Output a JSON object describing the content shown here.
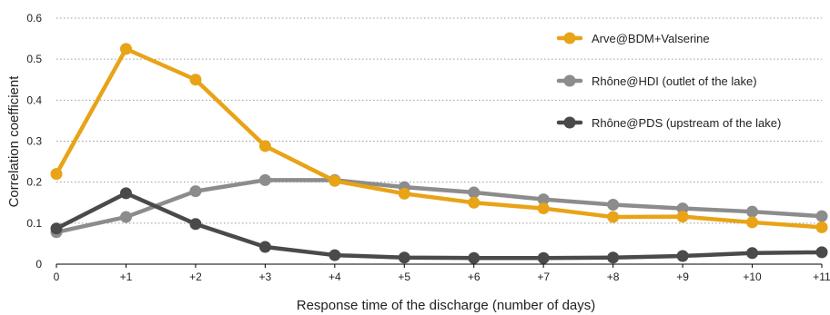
{
  "chart_data": {
    "type": "line",
    "title": "",
    "xlabel": "Response time of the discharge (number of days)",
    "ylabel": "Correlation coefficient",
    "categories": [
      "0",
      "+1",
      "+2",
      "+3",
      "+4",
      "+5",
      "+6",
      "+7",
      "+8",
      "+9",
      "+10",
      "+11"
    ],
    "yticks": [
      "0",
      "0.1",
      "0.2",
      "0.3",
      "0.4",
      "0.5",
      "0.6"
    ],
    "ylim": [
      0,
      0.6
    ],
    "grid": "horizontal dotted",
    "legend_position": "top-right",
    "series": [
      {
        "name": "Arve@BDM+Valserine",
        "color": "#E8A317",
        "values": [
          0.22,
          0.525,
          0.45,
          0.288,
          0.203,
          0.172,
          0.15,
          0.136,
          0.115,
          0.116,
          0.102,
          0.09
        ]
      },
      {
        "name": "Rhône@HDI (outlet of the lake)",
        "color": "#8C8C8C",
        "values": [
          0.078,
          0.115,
          0.178,
          0.205,
          0.205,
          0.188,
          0.175,
          0.158,
          0.145,
          0.136,
          0.128,
          0.117
        ]
      },
      {
        "name": "Rhône@PDS (upstream of the lake)",
        "color": "#4A4A4D",
        "values": [
          0.087,
          0.173,
          0.098,
          0.042,
          0.022,
          0.016,
          0.015,
          0.015,
          0.016,
          0.02,
          0.027,
          0.029
        ]
      }
    ]
  }
}
